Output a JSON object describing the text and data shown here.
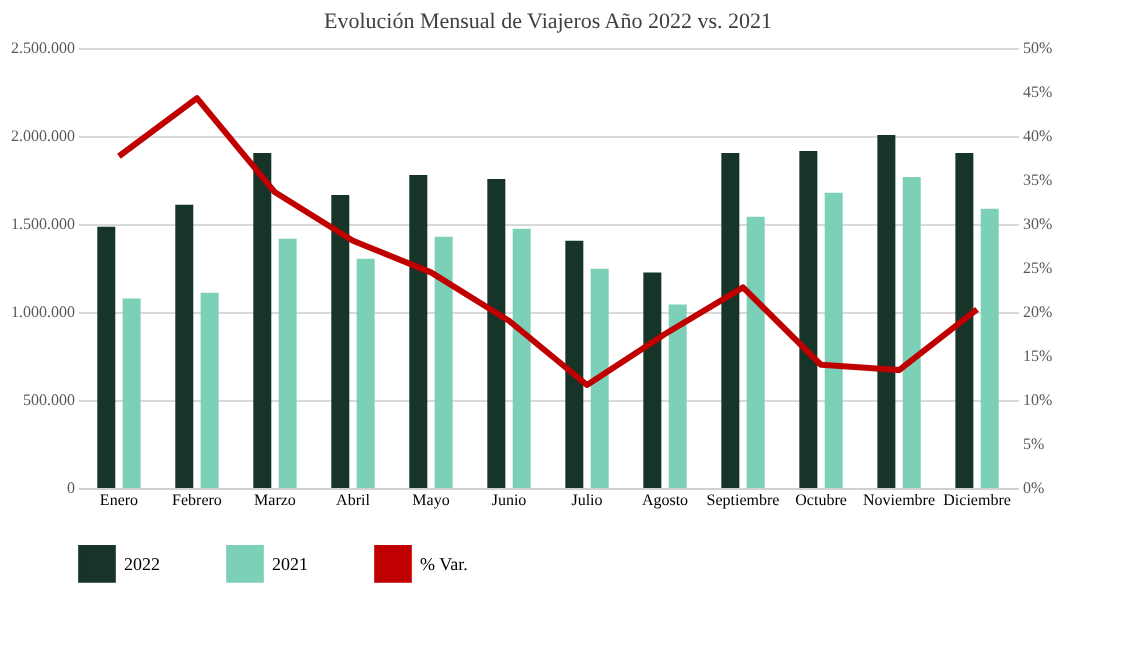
{
  "chart_data": {
    "type": "bar",
    "title": "Evolución Mensual de Viajeros Año 2022 vs. 2021",
    "categories": [
      "Enero",
      "Febrero",
      "Marzo",
      "Abril",
      "Mayo",
      "Junio",
      "Julio",
      "Agosto",
      "Septiembre",
      "Octubre",
      "Noviembre",
      "Diciembre"
    ],
    "series": [
      {
        "name": "2022",
        "color": "#173428",
        "values": [
          1484000,
          1609000,
          1903000,
          1665000,
          1779000,
          1756000,
          1405000,
          1224000,
          1903000,
          1915000,
          2005000,
          1903000
        ]
      },
      {
        "name": "2021",
        "color": "#7dd0b8",
        "values": [
          1076000,
          1110000,
          1416000,
          1303000,
          1427000,
          1473000,
          1246000,
          1042000,
          1541000,
          1677000,
          1767000,
          1586000
        ]
      },
      {
        "name": "% Var.",
        "type": "line",
        "axis": "y2",
        "color": "#c00000",
        "values": [
          37.7,
          44.3,
          33.6,
          28.1,
          24.5,
          19.0,
          11.7,
          17.5,
          22.8,
          14.0,
          13.4,
          20.3
        ]
      }
    ],
    "ylim": [
      0,
      2500000
    ],
    "yticks": [
      {
        "value": 0,
        "label": "0"
      },
      {
        "value": 500000,
        "label": "500.000"
      },
      {
        "value": 1000000,
        "label": "1.000.000"
      },
      {
        "value": 1500000,
        "label": "1.500.000"
      },
      {
        "value": 2000000,
        "label": "2.000.000"
      },
      {
        "value": 2500000,
        "label": "2.500.000"
      }
    ],
    "y2lim": [
      0,
      50
    ],
    "y2ticks": [
      {
        "value": 0,
        "label": "0%"
      },
      {
        "value": 5,
        "label": "5%"
      },
      {
        "value": 10,
        "label": "10%"
      },
      {
        "value": 15,
        "label": "15%"
      },
      {
        "value": 20,
        "label": "20%"
      },
      {
        "value": 25,
        "label": "25%"
      },
      {
        "value": 30,
        "label": "30%"
      },
      {
        "value": 35,
        "label": "35%"
      },
      {
        "value": 40,
        "label": "40%"
      },
      {
        "value": 45,
        "label": "45%"
      },
      {
        "value": 50,
        "label": "50%"
      }
    ],
    "grid": "y",
    "legend": "bottom"
  }
}
